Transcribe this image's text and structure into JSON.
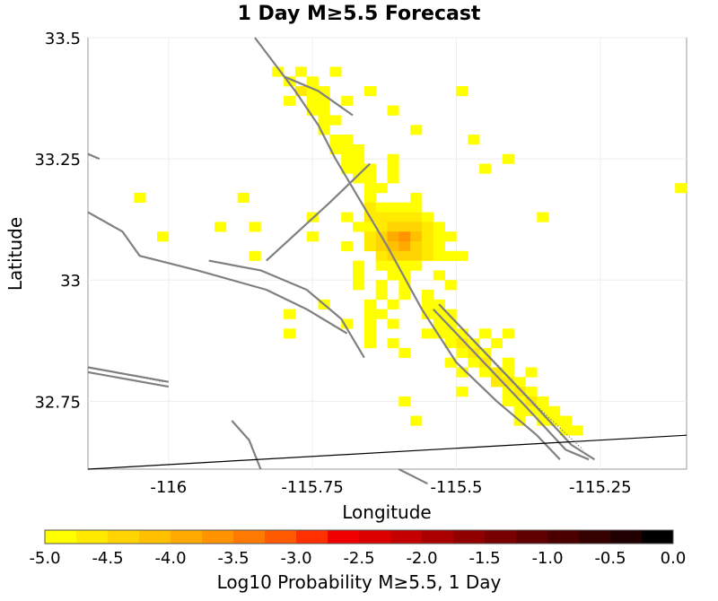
{
  "chart_data": {
    "type": "heatmap",
    "title": "1 Day M≥5.5 Forecast",
    "xlabel": "Longitude",
    "ylabel": "Latitude",
    "xlim": [
      -116.14,
      -115.1
    ],
    "ylim": [
      32.61,
      33.5
    ],
    "x_ticks": [
      {
        "value": -116,
        "label": "-116"
      },
      {
        "value": -115.75,
        "label": "-115.75"
      },
      {
        "value": -115.5,
        "label": "-115.5"
      },
      {
        "value": -115.25,
        "label": "-115.25"
      }
    ],
    "y_ticks": [
      {
        "value": 33.5,
        "label": "33.5"
      },
      {
        "value": 33.25,
        "label": "33.25"
      },
      {
        "value": 33,
        "label": "33"
      },
      {
        "value": 32.75,
        "label": "32.75"
      }
    ],
    "grid": true,
    "cell_size_deg": 0.02,
    "cells": [
      [
        -115.81,
        33.43,
        -5.0
      ],
      [
        -115.77,
        33.43,
        -4.8
      ],
      [
        -115.71,
        33.43,
        -5.0
      ],
      [
        -115.79,
        33.41,
        -4.9
      ],
      [
        -115.75,
        33.41,
        -5.0
      ],
      [
        -115.77,
        33.39,
        -4.7
      ],
      [
        -115.75,
        33.39,
        -4.8
      ],
      [
        -115.73,
        33.39,
        -4.9
      ],
      [
        -115.65,
        33.39,
        -5.0
      ],
      [
        -115.49,
        33.39,
        -5.0
      ],
      [
        -115.79,
        33.37,
        -5.0
      ],
      [
        -115.75,
        33.37,
        -4.8
      ],
      [
        -115.73,
        33.37,
        -4.9
      ],
      [
        -115.69,
        33.37,
        -5.0
      ],
      [
        -115.75,
        33.35,
        -4.9
      ],
      [
        -115.73,
        33.35,
        -5.0
      ],
      [
        -115.61,
        33.35,
        -5.0
      ],
      [
        -115.73,
        33.33,
        -4.9
      ],
      [
        -115.71,
        33.33,
        -5.0
      ],
      [
        -115.73,
        33.31,
        -5.0
      ],
      [
        -115.57,
        33.31,
        -5.0
      ],
      [
        -115.71,
        33.29,
        -5.0
      ],
      [
        -115.69,
        33.29,
        -5.0
      ],
      [
        -115.47,
        33.29,
        -5.0
      ],
      [
        -115.71,
        33.27,
        -4.9
      ],
      [
        -115.69,
        33.27,
        -4.8
      ],
      [
        -115.67,
        33.27,
        -5.0
      ],
      [
        -115.69,
        33.25,
        -4.8
      ],
      [
        -115.67,
        33.25,
        -4.9
      ],
      [
        -115.61,
        33.25,
        -5.0
      ],
      [
        -115.41,
        33.25,
        -5.0
      ],
      [
        -115.69,
        33.23,
        -4.8
      ],
      [
        -115.67,
        33.23,
        -4.9
      ],
      [
        -115.65,
        33.23,
        -5.0
      ],
      [
        -115.61,
        33.23,
        -5.0
      ],
      [
        -115.45,
        33.23,
        -5.0
      ],
      [
        -115.67,
        33.21,
        -4.8
      ],
      [
        -115.65,
        33.21,
        -4.9
      ],
      [
        -115.61,
        33.21,
        -5.0
      ],
      [
        -115.65,
        33.19,
        -4.8
      ],
      [
        -115.63,
        33.19,
        -5.0
      ],
      [
        -116.05,
        33.17,
        -5.0
      ],
      [
        -115.87,
        33.17,
        -5.0
      ],
      [
        -115.65,
        33.17,
        -4.8
      ],
      [
        -115.57,
        33.17,
        -5.0
      ],
      [
        -115.11,
        33.19,
        -5.0
      ],
      [
        -115.65,
        33.15,
        -4.7
      ],
      [
        -115.63,
        33.15,
        -4.8
      ],
      [
        -115.61,
        33.15,
        -4.9
      ],
      [
        -115.59,
        33.15,
        -4.8
      ],
      [
        -115.57,
        33.15,
        -4.8
      ],
      [
        -115.69,
        33.13,
        -5.0
      ],
      [
        -115.65,
        33.13,
        -4.7
      ],
      [
        -115.63,
        33.13,
        -4.6
      ],
      [
        -115.61,
        33.13,
        -4.7
      ],
      [
        -115.59,
        33.13,
        -4.6
      ],
      [
        -115.57,
        33.13,
        -4.6
      ],
      [
        -115.55,
        33.13,
        -4.9
      ],
      [
        -115.75,
        33.13,
        -5.0
      ],
      [
        -115.35,
        33.13,
        -5.0
      ],
      [
        -115.91,
        33.11,
        -5.0
      ],
      [
        -115.85,
        33.11,
        -5.0
      ],
      [
        -115.67,
        33.11,
        -5.0
      ],
      [
        -115.65,
        33.11,
        -4.8
      ],
      [
        -115.63,
        33.11,
        -4.6
      ],
      [
        -115.61,
        33.11,
        -4.4
      ],
      [
        -115.59,
        33.11,
        -4.4
      ],
      [
        -115.57,
        33.11,
        -4.5
      ],
      [
        -115.55,
        33.11,
        -4.7
      ],
      [
        -115.53,
        33.11,
        -4.9
      ],
      [
        -116.01,
        33.09,
        -5.0
      ],
      [
        -115.75,
        33.09,
        -5.0
      ],
      [
        -115.65,
        33.09,
        -4.7
      ],
      [
        -115.63,
        33.09,
        -4.5
      ],
      [
        -115.61,
        33.09,
        -3.9
      ],
      [
        -115.59,
        33.09,
        -3.7
      ],
      [
        -115.57,
        33.09,
        -4.2
      ],
      [
        -115.55,
        33.09,
        -4.6
      ],
      [
        -115.53,
        33.09,
        -4.8
      ],
      [
        -115.51,
        33.09,
        -5.0
      ],
      [
        -115.69,
        33.07,
        -5.0
      ],
      [
        -115.65,
        33.07,
        -4.7
      ],
      [
        -115.63,
        33.07,
        -4.5
      ],
      [
        -115.61,
        33.07,
        -4.1
      ],
      [
        -115.59,
        33.07,
        -3.8
      ],
      [
        -115.57,
        33.07,
        -4.3
      ],
      [
        -115.55,
        33.07,
        -4.6
      ],
      [
        -115.53,
        33.07,
        -4.9
      ],
      [
        -115.63,
        33.05,
        -4.6
      ],
      [
        -115.61,
        33.05,
        -4.5
      ],
      [
        -115.59,
        33.05,
        -4.4
      ],
      [
        -115.57,
        33.05,
        -4.5
      ],
      [
        -115.55,
        33.05,
        -4.6
      ],
      [
        -115.53,
        33.05,
        -4.9
      ],
      [
        -115.51,
        33.05,
        -5.0
      ],
      [
        -115.49,
        33.05,
        -5.0
      ],
      [
        -115.85,
        33.05,
        -5.0
      ],
      [
        -115.67,
        33.03,
        -5.0
      ],
      [
        -115.63,
        33.03,
        -4.8
      ],
      [
        -115.61,
        33.03,
        -4.8
      ],
      [
        -115.59,
        33.03,
        -4.9
      ],
      [
        -115.57,
        33.03,
        -5.0
      ],
      [
        -115.67,
        33.01,
        -5.0
      ],
      [
        -115.61,
        33.01,
        -4.9
      ],
      [
        -115.59,
        33.01,
        -5.0
      ],
      [
        -115.53,
        33.01,
        -5.0
      ],
      [
        -115.67,
        32.99,
        -5.0
      ],
      [
        -115.63,
        32.99,
        -5.0
      ],
      [
        -115.59,
        32.99,
        -4.9
      ],
      [
        -115.51,
        32.99,
        -5.0
      ],
      [
        -115.63,
        32.97,
        -5.0
      ],
      [
        -115.59,
        32.97,
        -5.0
      ],
      [
        -115.55,
        32.97,
        -5.0
      ],
      [
        -115.73,
        32.95,
        -5.0
      ],
      [
        -115.65,
        32.95,
        -5.0
      ],
      [
        -115.61,
        32.95,
        -5.0
      ],
      [
        -115.55,
        32.95,
        -4.9
      ],
      [
        -115.53,
        32.95,
        -5.0
      ],
      [
        -115.79,
        32.93,
        -5.0
      ],
      [
        -115.65,
        32.93,
        -5.0
      ],
      [
        -115.63,
        32.93,
        -5.0
      ],
      [
        -115.55,
        32.93,
        -5.0
      ],
      [
        -115.53,
        32.93,
        -4.9
      ],
      [
        -115.51,
        32.93,
        -5.0
      ],
      [
        -115.69,
        32.91,
        -5.0
      ],
      [
        -115.65,
        32.91,
        -5.0
      ],
      [
        -115.61,
        32.91,
        -5.0
      ],
      [
        -115.53,
        32.91,
        -4.9
      ],
      [
        -115.51,
        32.91,
        -4.8
      ],
      [
        -115.79,
        32.89,
        -5.0
      ],
      [
        -115.65,
        32.89,
        -5.0
      ],
      [
        -115.55,
        32.89,
        -5.0
      ],
      [
        -115.53,
        32.89,
        -4.8
      ],
      [
        -115.51,
        32.89,
        -4.8
      ],
      [
        -115.49,
        32.89,
        -4.9
      ],
      [
        -115.45,
        32.89,
        -5.0
      ],
      [
        -115.41,
        32.89,
        -5.0
      ],
      [
        -115.65,
        32.87,
        -5.0
      ],
      [
        -115.61,
        32.87,
        -5.0
      ],
      [
        -115.51,
        32.87,
        -4.8
      ],
      [
        -115.49,
        32.87,
        -4.7
      ],
      [
        -115.47,
        32.87,
        -4.9
      ],
      [
        -115.43,
        32.87,
        -5.0
      ],
      [
        -115.59,
        32.85,
        -5.0
      ],
      [
        -115.49,
        32.85,
        -4.8
      ],
      [
        -115.47,
        32.85,
        -4.7
      ],
      [
        -115.45,
        32.85,
        -4.9
      ],
      [
        -115.51,
        32.83,
        -5.0
      ],
      [
        -115.47,
        32.83,
        -4.8
      ],
      [
        -115.45,
        32.83,
        -4.7
      ],
      [
        -115.41,
        32.83,
        -5.0
      ],
      [
        -115.49,
        32.81,
        -5.0
      ],
      [
        -115.45,
        32.81,
        -4.8
      ],
      [
        -115.43,
        32.81,
        -4.7
      ],
      [
        -115.41,
        32.81,
        -4.9
      ],
      [
        -115.37,
        32.81,
        -5.0
      ],
      [
        -115.43,
        32.79,
        -4.7
      ],
      [
        -115.41,
        32.79,
        -4.7
      ],
      [
        -115.39,
        32.79,
        -4.8
      ],
      [
        -115.49,
        32.77,
        -5.0
      ],
      [
        -115.41,
        32.77,
        -4.8
      ],
      [
        -115.39,
        32.77,
        -4.7
      ],
      [
        -115.37,
        32.77,
        -4.8
      ],
      [
        -115.41,
        32.75,
        -4.9
      ],
      [
        -115.39,
        32.75,
        -4.8
      ],
      [
        -115.37,
        32.75,
        -4.7
      ],
      [
        -115.35,
        32.75,
        -4.9
      ],
      [
        -115.59,
        32.75,
        -5.0
      ],
      [
        -115.39,
        32.73,
        -5.0
      ],
      [
        -115.37,
        32.73,
        -4.8
      ],
      [
        -115.35,
        32.73,
        -4.8
      ],
      [
        -115.33,
        32.73,
        -5.0
      ],
      [
        -115.39,
        32.71,
        -5.0
      ],
      [
        -115.35,
        32.71,
        -4.9
      ],
      [
        -115.33,
        32.71,
        -4.8
      ],
      [
        -115.31,
        32.71,
        -5.0
      ],
      [
        -115.57,
        32.71,
        -5.0
      ],
      [
        -115.31,
        32.69,
        -4.9
      ],
      [
        -115.29,
        32.69,
        -5.0
      ]
    ],
    "faults": [
      [
        [
          -115.85,
          33.5
        ],
        [
          -115.78,
          33.39
        ],
        [
          -115.74,
          33.32
        ],
        [
          -115.71,
          33.25
        ],
        [
          -115.67,
          33.17
        ],
        [
          -115.62,
          33.07
        ],
        [
          -115.56,
          32.94
        ],
        [
          -115.5,
          32.83
        ],
        [
          -115.43,
          32.75
        ],
        [
          -115.36,
          32.68
        ],
        [
          -115.32,
          32.63
        ]
      ],
      [
        [
          -115.8,
          33.42
        ],
        [
          -115.74,
          33.39
        ],
        [
          -115.68,
          33.34
        ]
      ],
      [
        [
          -115.83,
          33.04
        ],
        [
          -115.72,
          33.16
        ],
        [
          -115.65,
          33.24
        ]
      ],
      [
        [
          -115.93,
          33.04
        ],
        [
          -115.84,
          33.02
        ],
        [
          -115.76,
          32.98
        ],
        [
          -115.7,
          32.92
        ],
        [
          -115.66,
          32.84
        ]
      ],
      [
        [
          -116.14,
          33.14
        ],
        [
          -116.08,
          33.1
        ],
        [
          -116.05,
          33.05
        ],
        [
          -115.95,
          33.02
        ],
        [
          -115.83,
          32.98
        ],
        [
          -115.76,
          32.94
        ],
        [
          -115.69,
          32.89
        ]
      ],
      [
        [
          -115.54,
          32.94
        ],
        [
          -115.46,
          32.84
        ],
        [
          -115.38,
          32.74
        ],
        [
          -115.31,
          32.65
        ],
        [
          -115.27,
          32.63
        ]
      ],
      [
        [
          -115.53,
          32.95
        ],
        [
          -115.45,
          32.85
        ],
        [
          -115.37,
          32.75
        ],
        [
          -115.3,
          32.66
        ],
        [
          -115.26,
          32.63
        ]
      ],
      [
        [
          -115.89,
          32.71
        ],
        [
          -115.86,
          32.67
        ],
        [
          -115.84,
          32.61
        ]
      ],
      [
        [
          -115.6,
          32.61
        ],
        [
          -115.55,
          32.58
        ]
      ],
      [
        [
          -116.14,
          33.26
        ],
        [
          -116.12,
          33.25
        ]
      ],
      [
        [
          -116.14,
          32.82
        ],
        [
          -116.0,
          32.79
        ]
      ],
      [
        [
          -116.14,
          32.81
        ],
        [
          -116.0,
          32.78
        ]
      ]
    ],
    "dotted_faults": [
      [
        [
          -116.14,
          32.82
        ],
        [
          -116.05,
          32.8
        ],
        [
          -116.01,
          32.79
        ]
      ],
      [
        [
          -115.53,
          32.95
        ],
        [
          -115.44,
          32.84
        ],
        [
          -115.36,
          32.74
        ],
        [
          -115.28,
          32.65
        ]
      ]
    ],
    "border": [
      [
        -116.14,
        32.61
      ],
      [
        -115.1,
        32.68
      ]
    ],
    "colorbar": {
      "label": "Log10 Probability M≥5.5, 1 Day",
      "min": -5.0,
      "max": 0.0,
      "tick_labels": [
        "-5.0",
        "-4.5",
        "-4.0",
        "-3.5",
        "-3.0",
        "-2.5",
        "-2.0",
        "-1.5",
        "-1.0",
        "-0.5",
        "0.0"
      ],
      "colors": [
        "#ffff00",
        "#ffea00",
        "#ffd400",
        "#ffc000",
        "#ffaa00",
        "#ff9400",
        "#ff7a00",
        "#ff5a00",
        "#ff3000",
        "#f00000",
        "#dc0000",
        "#c40000",
        "#aa0000",
        "#900000",
        "#780000",
        "#600000",
        "#4a0000",
        "#340000",
        "#200000",
        "#000000"
      ]
    }
  }
}
